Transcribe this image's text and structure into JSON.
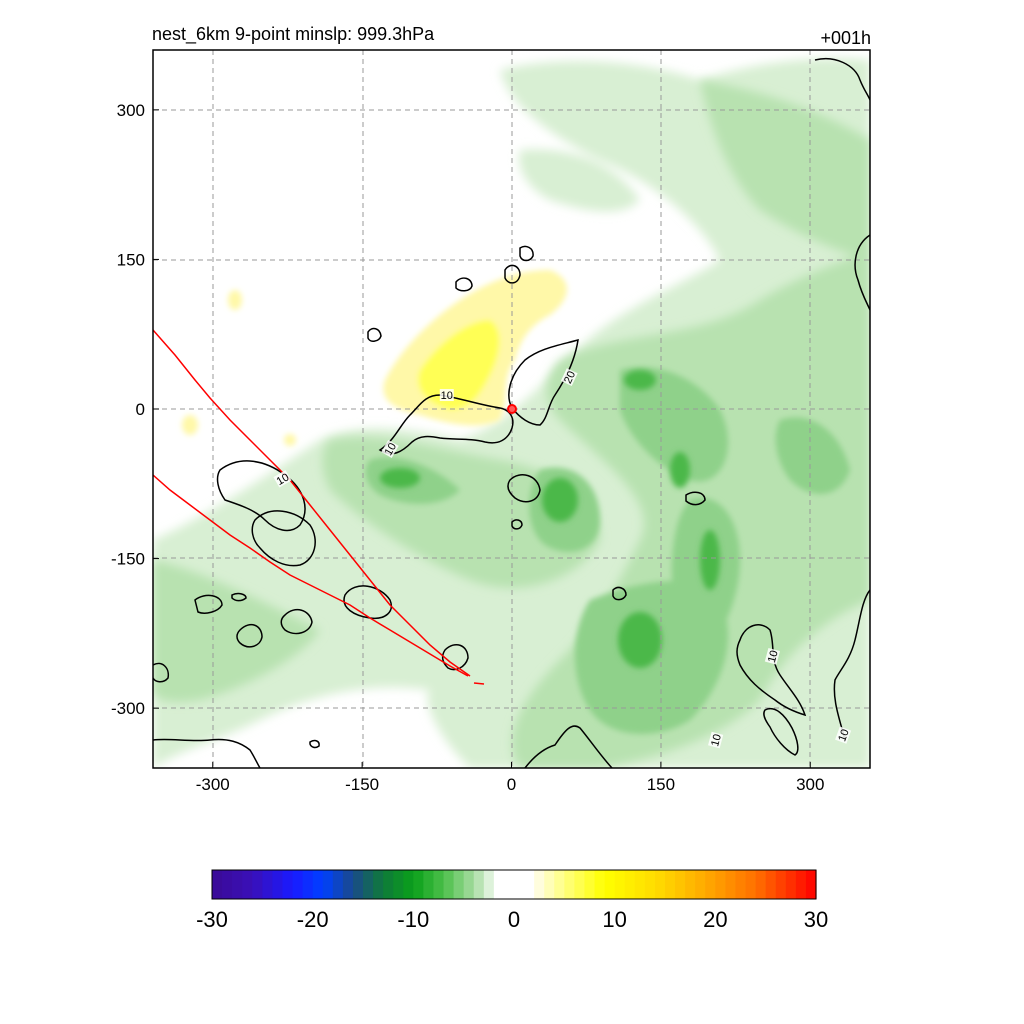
{
  "chart_data": {
    "type": "heatmap",
    "title_left": "nest_6km  9-point minslp: 999.3hPa",
    "title_right": "+001h",
    "xlim": [
      -360,
      360
    ],
    "ylim": [
      -360,
      360
    ],
    "xticks": [
      -300,
      -150,
      0,
      150,
      300
    ],
    "yticks": [
      -300,
      -150,
      0,
      150,
      300
    ],
    "xtick_labels": [
      "-300",
      "-150",
      "0",
      "150",
      "300"
    ],
    "ytick_labels": [
      "-300",
      "-150",
      "0",
      "150",
      "300"
    ],
    "grid": true,
    "center_marker": {
      "x": 0,
      "y": 0,
      "color": "#ff0000"
    },
    "colorbar": {
      "min": -30,
      "max": 30,
      "ticks": [
        -30,
        -20,
        -10,
        0,
        10,
        20,
        30
      ],
      "tick_labels": [
        "-30",
        "-20",
        "-10",
        "0",
        "10",
        "20",
        "30"
      ]
    },
    "contour_labels": [
      {
        "text": "10",
        "x": -65,
        "y": 14,
        "rot": 0
      },
      {
        "text": "10",
        "x": -122,
        "y": -40,
        "rot": -60
      },
      {
        "text": "10",
        "x": -230,
        "y": -70,
        "rot": -30
      },
      {
        "text": "20",
        "x": 58,
        "y": 32,
        "rot": -65
      },
      {
        "text": "10",
        "x": 262,
        "y": -248,
        "rot": -75
      },
      {
        "text": "10",
        "x": 205,
        "y": -332,
        "rot": -75
      },
      {
        "text": "10",
        "x": 333,
        "y": -327,
        "rot": -70
      }
    ]
  }
}
